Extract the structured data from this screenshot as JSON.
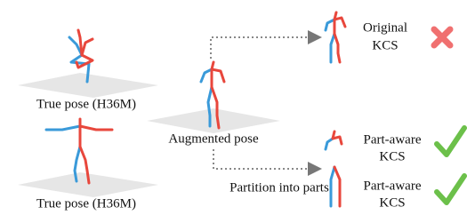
{
  "poses": [
    {
      "label": "True pose (H36M)"
    },
    {
      "label": "True pose (H36M)"
    },
    {
      "label": "Augmented pose"
    }
  ],
  "edges": [
    {
      "label": "Partition into parts"
    }
  ],
  "outcomes": [
    {
      "lines": [
        "Original",
        "KCS"
      ]
    },
    {
      "lines": [
        "Part-aware",
        "KCS"
      ]
    },
    {
      "lines": [
        "Part-aware",
        "KCS"
      ]
    }
  ]
}
